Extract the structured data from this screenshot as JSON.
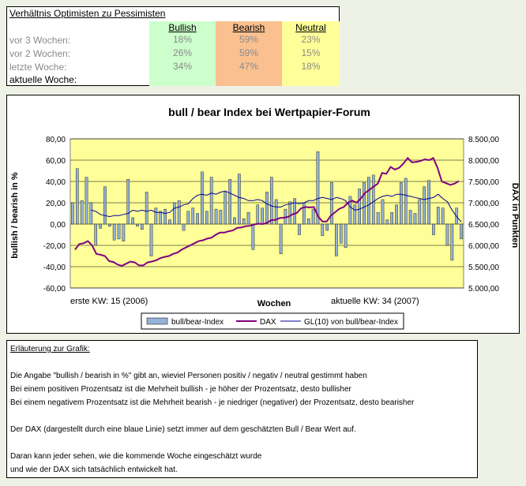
{
  "table": {
    "title": "Verhältnis Optimisten zu Pessimisten",
    "headers": [
      "Bullish",
      "Bearish",
      "Neutral"
    ],
    "header_colors": [
      "#ccffcc",
      "#fac090",
      "#ffff99"
    ],
    "rows": [
      {
        "label": "vor 3 Wochen:",
        "values": [
          "18%",
          "59%",
          "23%"
        ]
      },
      {
        "label": "vor 2 Wochen:",
        "values": [
          "26%",
          "59%",
          "15%"
        ]
      },
      {
        "label": "letzte Woche:",
        "values": [
          "34%",
          "47%",
          "18%"
        ]
      },
      {
        "label": "aktuelle Woche:",
        "values": [
          "",
          "",
          ""
        ]
      }
    ]
  },
  "chart_data": {
    "type": "bar",
    "title": "bull / bear Index bei Wertpapier-Forum",
    "xlabel": "Wochen",
    "ylabel": "bullish / bearish in %",
    "y2label": "DAX in Punkten",
    "ylim": [
      -60,
      80
    ],
    "y2lim": [
      5000,
      8500
    ],
    "y_ticks": [
      "80,00",
      "60,00",
      "40,00",
      "20,00",
      "0,00",
      "-20,00",
      "-40,00",
      "-60,00"
    ],
    "y2_ticks": [
      "8.500,00",
      "8.000,00",
      "7.500,00",
      "7.000,00",
      "6.500,00",
      "6.000,00",
      "5.500,00",
      "5.000,00"
    ],
    "x_first_label": "erste KW: 15 (2006)",
    "x_last_label": "aktuelle KW: 34 (2007)",
    "plot_background": "#ffff99",
    "grid": true,
    "legend": "bottom",
    "series": [
      {
        "name": "bull/bear-Index",
        "kind": "bar",
        "color": "#95b3d7",
        "values": [
          20,
          52,
          22,
          44,
          20,
          -20,
          -4,
          35,
          -2,
          -15,
          -14,
          -16,
          42,
          6,
          -2,
          -5,
          30,
          -30,
          15,
          12,
          14,
          4,
          20,
          22,
          -6,
          12,
          15,
          10,
          49,
          12,
          44,
          14,
          13,
          30,
          42,
          6,
          47,
          5,
          11,
          -24,
          18,
          15,
          30,
          44,
          23,
          -28,
          14,
          21,
          24,
          -10,
          20,
          5,
          14,
          68,
          -11,
          -6,
          39,
          -30,
          -18,
          -22,
          26,
          18,
          33,
          39,
          44,
          46,
          11,
          23,
          4,
          11,
          18,
          39,
          43,
          13,
          10,
          23,
          35,
          41,
          -10,
          16,
          15,
          -20,
          -34,
          15,
          -14
        ]
      },
      {
        "name": "DAX",
        "kind": "line",
        "color": "#800080",
        "values": [
          5900,
          6030,
          6050,
          6100,
          6000,
          5800,
          5780,
          5750,
          5630,
          5610,
          5550,
          5520,
          5570,
          5620,
          5600,
          5530,
          5530,
          5600,
          5620,
          5650,
          5700,
          5730,
          5750,
          5800,
          5830,
          5900,
          5950,
          6000,
          6050,
          6100,
          6120,
          6160,
          6180,
          6250,
          6300,
          6300,
          6330,
          6350,
          6410,
          6420,
          6450,
          6460,
          6490,
          6510,
          6500,
          6530,
          6590,
          6600,
          6640,
          6650,
          6670,
          6730,
          6760,
          6870,
          6900,
          6890,
          6900,
          6680,
          6560,
          6560,
          6700,
          6780,
          6860,
          6900,
          7000,
          7050,
          7000,
          7100,
          7230,
          7300,
          7380,
          7450,
          7700,
          7680,
          7840,
          7780,
          7820,
          7920,
          8050,
          7950,
          7960,
          7980,
          8020,
          8000,
          8050,
          7820,
          7500,
          7460,
          7420,
          7450,
          7510
        ]
      },
      {
        "name": "GL(10) von bull/bear-Index",
        "kind": "line",
        "color": "#000099",
        "values": [
          13,
          12,
          9,
          8,
          7,
          8,
          8,
          9,
          10,
          13,
          12,
          13,
          12,
          13,
          11,
          11,
          10,
          11,
          15,
          16,
          18,
          19,
          24,
          27,
          28,
          27,
          29,
          28,
          30,
          31,
          29,
          27,
          25,
          24,
          22,
          22,
          23,
          22,
          19,
          17,
          16,
          16,
          18,
          19,
          20,
          19,
          20,
          22,
          22,
          24,
          25,
          24,
          23,
          25,
          24,
          22,
          16,
          13,
          14,
          16,
          18,
          21,
          24,
          26,
          27,
          26,
          28,
          28,
          27,
          26,
          25,
          24,
          23,
          24,
          25,
          28,
          24,
          21,
          13,
          7,
          2
        ]
      }
    ]
  },
  "explanation": {
    "heading": "Erläuterung zur Grafik:",
    "lines": [
      "Die Angabe \"bullish / bearish in %\" gibt an, wieviel Personen positiv / negativ / neutral gestimmt haben",
      "Bei einem positiven Prozentsatz ist die Mehrheit bullish - je höher der Prozentsatz, desto bullisher",
      "Bei einem negativem Prozentsatz ist die Mehrheit bearish - je niedriger (negativer) der Prozentsatz, desto bearisher",
      "Der DAX (dargestellt durch eine blaue Linie) setzt immer auf dem geschätzten Bull / Bear Wert auf.",
      "Daran kann jeder sehen, wie die kommende Woche eingeschätzt wurde",
      "und wie der DAX sich tatsächlich entwickelt hat."
    ]
  }
}
